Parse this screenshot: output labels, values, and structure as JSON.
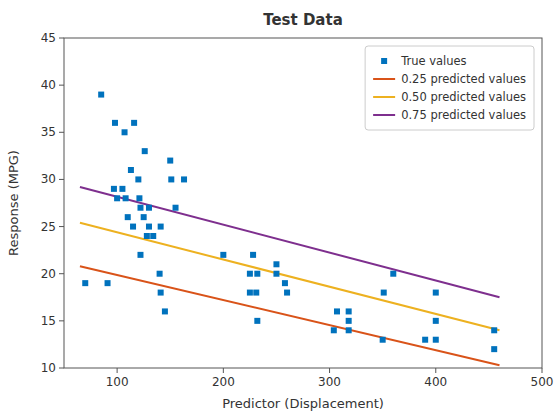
{
  "chart_data": {
    "type": "scatter",
    "title": "Test Data",
    "xlabel": "Predictor (Displacement)",
    "ylabel": "Response (MPG)",
    "xlim": [
      50,
      500
    ],
    "ylim": [
      10,
      45
    ],
    "xticks": [
      100,
      200,
      300,
      400,
      500
    ],
    "yticks": [
      10,
      15,
      20,
      25,
      30,
      35,
      40,
      45
    ],
    "grid": false,
    "legend": "upper right",
    "series": [
      {
        "name": "True values",
        "type": "scatter",
        "marker": "square",
        "color": "#0072BD",
        "x": [
          70,
          85,
          91,
          97,
          98,
          100,
          105,
          107,
          108,
          110,
          113,
          115,
          116,
          120,
          121,
          122,
          122,
          125,
          126,
          128,
          130,
          130,
          134,
          140,
          141,
          141,
          145,
          150,
          151,
          155,
          163,
          200,
          225,
          225,
          228,
          231,
          232,
          232,
          250,
          250,
          258,
          260,
          304,
          307,
          318,
          318,
          318,
          350,
          351,
          360,
          390,
          400,
          400,
          400,
          455,
          455
        ],
        "values": [
          19,
          39,
          19,
          29,
          36,
          28,
          29,
          35,
          28,
          26,
          31,
          25,
          36,
          30,
          28,
          22,
          27,
          26,
          33,
          24,
          27,
          25,
          24,
          20,
          25,
          18,
          16,
          32,
          30,
          27,
          30,
          22,
          20,
          18,
          22,
          18,
          20,
          15,
          20,
          21,
          19,
          18,
          14,
          16,
          16,
          15,
          14,
          13,
          18,
          20,
          13,
          13,
          15,
          18,
          14,
          12
        ]
      },
      {
        "name": "0.25 predicted values",
        "type": "line",
        "color": "#D95319",
        "x": [
          65,
          460
        ],
        "values": [
          20.8,
          10.3
        ]
      },
      {
        "name": "0.50 predicted values",
        "type": "line",
        "color": "#EDB120",
        "x": [
          65,
          460
        ],
        "values": [
          25.4,
          14.0
        ]
      },
      {
        "name": "0.75 predicted values",
        "type": "line",
        "color": "#7E2F8E",
        "x": [
          65,
          460
        ],
        "values": [
          29.2,
          17.5
        ]
      }
    ]
  }
}
